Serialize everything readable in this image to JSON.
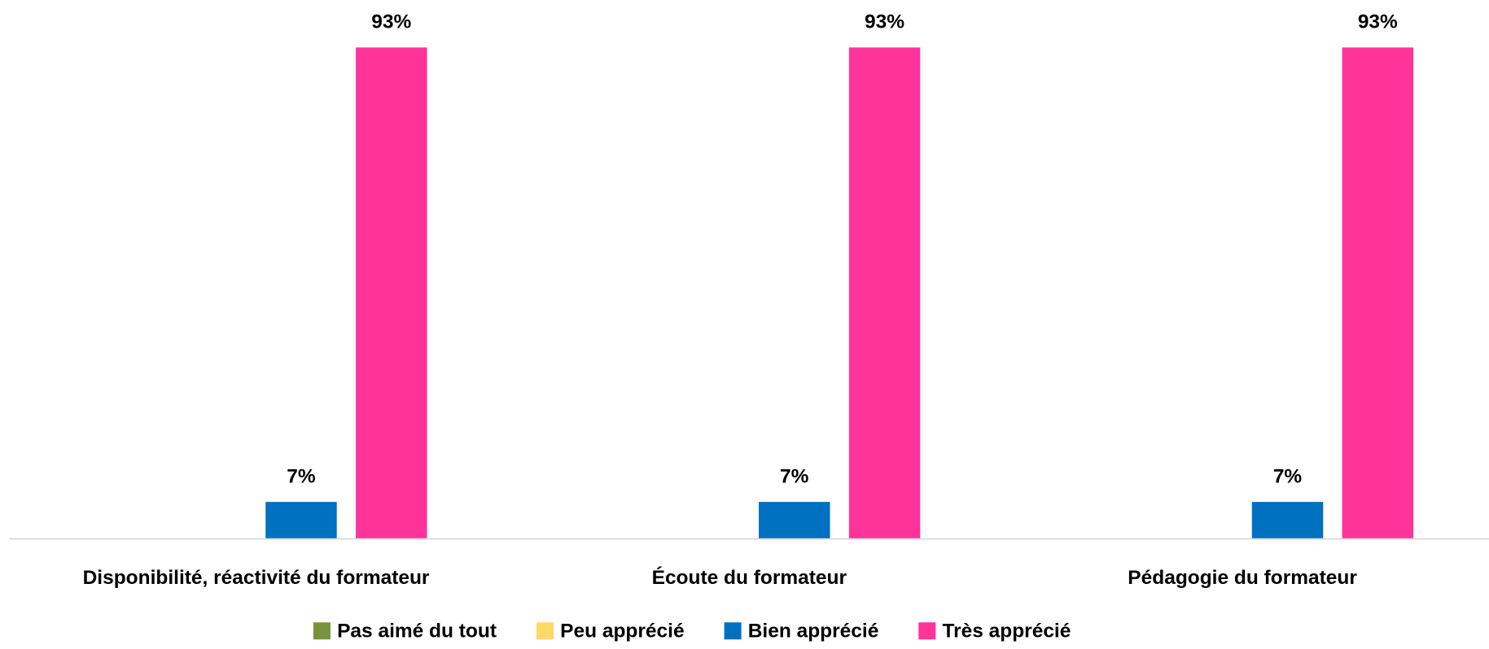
{
  "chart_data": {
    "type": "bar",
    "categories": [
      "Disponibilité, réactivité du formateur",
      "Écoute du formateur",
      "Pédagogie du formateur"
    ],
    "series": [
      {
        "name": "Pas aimé du tout",
        "color": "#77933c",
        "values": [
          0,
          0,
          0
        ]
      },
      {
        "name": "Peu apprécié",
        "color": "#ffd966",
        "values": [
          0,
          0,
          0
        ]
      },
      {
        "name": "Bien apprécié",
        "color": "#0070c0",
        "values": [
          7,
          7,
          7
        ],
        "value_labels": [
          "7%",
          "7%",
          "7%"
        ]
      },
      {
        "name": "Très apprécié",
        "color": "#ff3399",
        "values": [
          93,
          93,
          93
        ],
        "value_labels": [
          "93%",
          "93%",
          "93%"
        ]
      }
    ],
    "ylim": [
      0,
      100
    ],
    "legend": "bottom"
  }
}
